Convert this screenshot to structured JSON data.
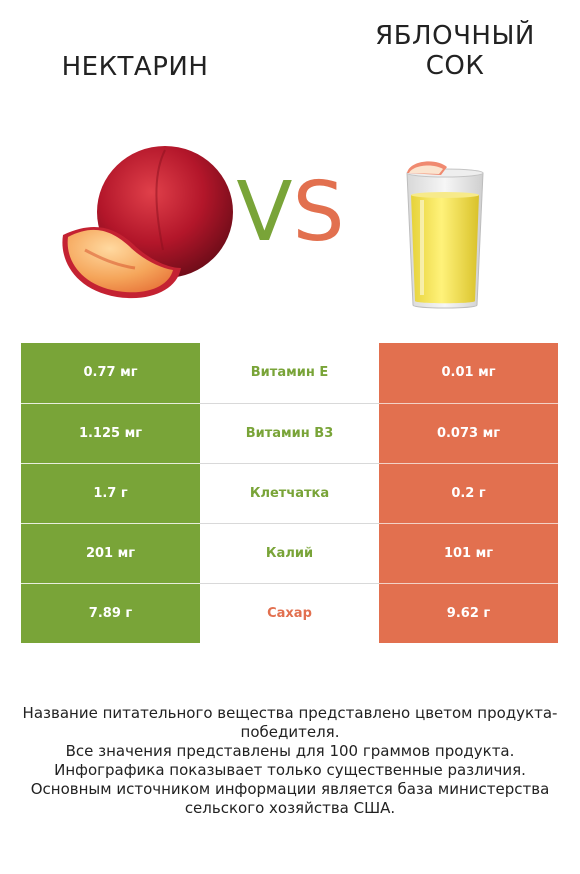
{
  "left_item": {
    "title": "НЕКТАРИН",
    "color": "#79a438",
    "image": "nectarine-image"
  },
  "right_item": {
    "title_line1": "ЯБЛОЧНЫЙ",
    "title_line2": "СОК",
    "color": "#e2704f",
    "image": "apple-juice-glass-image"
  },
  "vs": {
    "v": "V",
    "s": "S"
  },
  "rows": [
    {
      "left": "0.77 мг",
      "name": "Витамин E",
      "right": "0.01 мг",
      "winner": "left"
    },
    {
      "left": "1.125 мг",
      "name": "Витамин B3",
      "right": "0.073 мг",
      "winner": "left"
    },
    {
      "left": "1.7 г",
      "name": "Клетчатка",
      "right": "0.2 г",
      "winner": "left"
    },
    {
      "left": "201 мг",
      "name": "Калий",
      "right": "101 мг",
      "winner": "left"
    },
    {
      "left": "7.89 г",
      "name": "Сахар",
      "right": "9.62 г",
      "winner": "right"
    }
  ],
  "footer": {
    "line1": "Название питательного вещества представлено цветом продукта-победителя.",
    "line2": "Все значения представлены для 100 граммов продукта.",
    "line3": "Инфографика показывает только существенные различия.",
    "line4": "Основным источником информации является база министерства сельского хозяйства США."
  }
}
